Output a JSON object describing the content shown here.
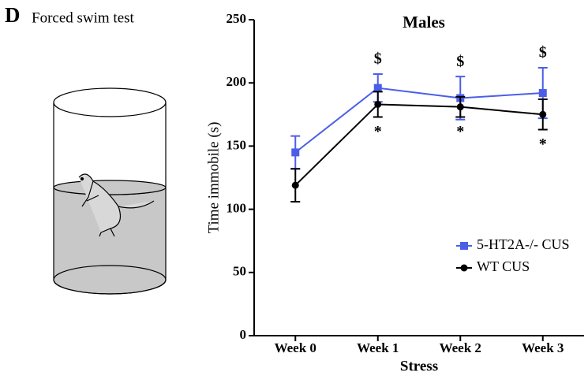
{
  "panel": "D",
  "caption": "Forced swim test",
  "chart_data": {
    "type": "line",
    "title": "Males",
    "y_label": "Time immobile (s)",
    "x_label": "Stress",
    "categories": [
      "Week 0",
      "Week 1",
      "Week 2",
      "Week 3"
    ],
    "series": [
      {
        "name": "5-HT2A-/- CUS",
        "color": "#4b5ee8",
        "marker": "square",
        "values": [
          145,
          196,
          188,
          192
        ],
        "errors": [
          13,
          11,
          17,
          20
        ],
        "point_labels": [
          null,
          "$",
          "$",
          "$"
        ]
      },
      {
        "name": "WT CUS",
        "color": "#000000",
        "marker": "circle",
        "values": [
          119,
          183,
          181,
          175
        ],
        "errors": [
          13,
          10,
          8,
          12
        ],
        "point_labels": [
          null,
          "*",
          "*",
          "*"
        ]
      }
    ],
    "ylim": [
      0,
      250
    ],
    "yticks": [
      0,
      50,
      100,
      150,
      200,
      250
    ],
    "legend": "lower right"
  }
}
